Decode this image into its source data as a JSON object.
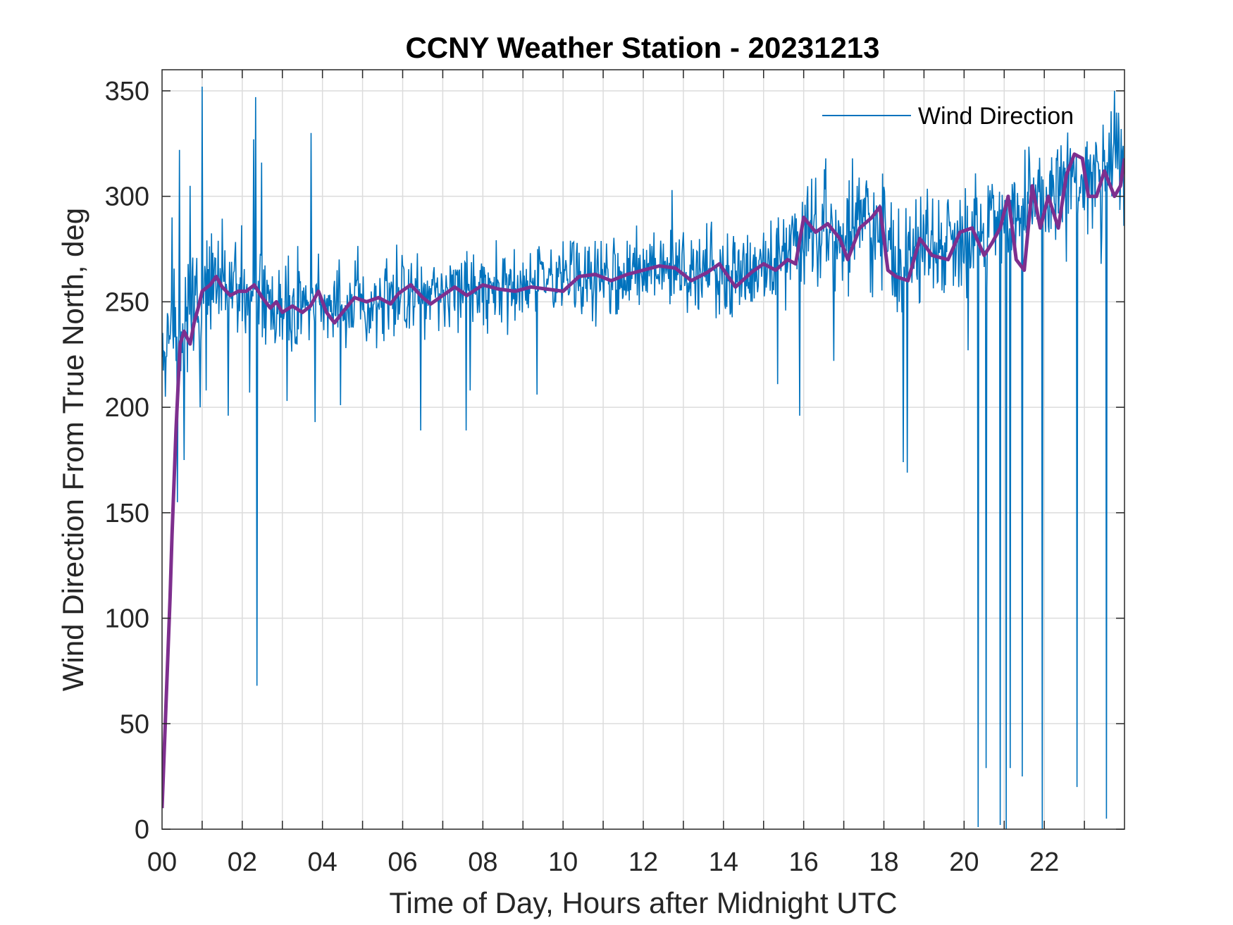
{
  "chart_data": {
    "type": "line",
    "title": "CCNY Weather Station - 20231213",
    "xlabel": "Time of Day, Hours after Midnight UTC",
    "ylabel": "Wind Direction From True North, deg",
    "xlim": [
      0,
      24
    ],
    "ylim": [
      0,
      360
    ],
    "x_ticks": [
      0,
      2,
      4,
      6,
      8,
      10,
      12,
      14,
      16,
      18,
      20,
      22
    ],
    "x_tick_labels": [
      "00",
      "02",
      "04",
      "06",
      "08",
      "10",
      "12",
      "14",
      "16",
      "18",
      "20",
      "22"
    ],
    "y_ticks": [
      0,
      50,
      100,
      150,
      200,
      250,
      300,
      350
    ],
    "y_tick_labels": [
      "0",
      "50",
      "100",
      "150",
      "200",
      "250",
      "300",
      "350"
    ],
    "grid": true,
    "legend": {
      "position": "top-right",
      "entries": [
        "Wind Direction"
      ]
    },
    "colors": {
      "raw": "#0072BD",
      "smooth": "#7E2F8E",
      "grid": "#dcdcdc",
      "axis": "#262626"
    },
    "series": [
      {
        "name": "Wind Direction",
        "samples_per_hour": 60,
        "base_curve": {
          "x": [
            0,
            0.3,
            0.6,
            1.0,
            1.5,
            2.0,
            2.5,
            3.0,
            3.5,
            4.0,
            4.5,
            5.0,
            5.5,
            6.0,
            6.5,
            7.0,
            7.5,
            8.0,
            9.0,
            10.0,
            11.0,
            12.0,
            13.0,
            14.0,
            15.0,
            15.5,
            16.0,
            16.5,
            17.0,
            17.5,
            18.0,
            18.5,
            19.0,
            19.5,
            20.0,
            20.5,
            21.0,
            21.5,
            22.0,
            22.5,
            23.0,
            23.5,
            24.0
          ],
          "y": [
            225,
            235,
            240,
            255,
            258,
            255,
            252,
            250,
            248,
            245,
            250,
            252,
            253,
            254,
            252,
            255,
            257,
            257,
            256,
            260,
            262,
            264,
            265,
            264,
            267,
            272,
            285,
            286,
            278,
            288,
            280,
            268,
            278,
            278,
            283,
            285,
            295,
            290,
            298,
            310,
            305,
            310,
            318
          ]
        },
        "noise_amplitude": {
          "x": [
            0,
            1,
            5,
            10,
            15,
            16,
            18,
            20,
            21,
            24
          ],
          "y": [
            22,
            26,
            17,
            17,
            20,
            22,
            24,
            24,
            24,
            22
          ]
        },
        "spikes": [
          {
            "t": 0.08,
            "v": 205
          },
          {
            "t": 0.25,
            "v": 290
          },
          {
            "t": 0.38,
            "v": 155
          },
          {
            "t": 0.43,
            "v": 322
          },
          {
            "t": 0.55,
            "v": 175
          },
          {
            "t": 0.7,
            "v": 305
          },
          {
            "t": 0.95,
            "v": 200
          },
          {
            "t": 1.0,
            "v": 352
          },
          {
            "t": 1.1,
            "v": 208
          },
          {
            "t": 1.65,
            "v": 196
          },
          {
            "t": 2.18,
            "v": 207
          },
          {
            "t": 2.28,
            "v": 327
          },
          {
            "t": 2.33,
            "v": 347
          },
          {
            "t": 2.37,
            "v": 68
          },
          {
            "t": 2.48,
            "v": 316
          },
          {
            "t": 3.12,
            "v": 203
          },
          {
            "t": 3.72,
            "v": 330
          },
          {
            "t": 3.82,
            "v": 193
          },
          {
            "t": 4.45,
            "v": 201
          },
          {
            "t": 5.35,
            "v": 228
          },
          {
            "t": 6.45,
            "v": 189
          },
          {
            "t": 7.58,
            "v": 189
          },
          {
            "t": 7.68,
            "v": 208
          },
          {
            "t": 9.35,
            "v": 206
          },
          {
            "t": 12.72,
            "v": 303
          },
          {
            "t": 15.35,
            "v": 211
          },
          {
            "t": 15.9,
            "v": 196
          },
          {
            "t": 16.55,
            "v": 318
          },
          {
            "t": 16.75,
            "v": 222
          },
          {
            "t": 17.22,
            "v": 318
          },
          {
            "t": 18.48,
            "v": 174
          },
          {
            "t": 18.58,
            "v": 169
          },
          {
            "t": 20.1,
            "v": 227
          },
          {
            "t": 20.35,
            "v": 1
          },
          {
            "t": 20.55,
            "v": 29
          },
          {
            "t": 20.9,
            "v": 2
          },
          {
            "t": 21.05,
            "v": 0
          },
          {
            "t": 21.15,
            "v": 29
          },
          {
            "t": 21.45,
            "v": 25
          },
          {
            "t": 21.95,
            "v": 0
          },
          {
            "t": 22.55,
            "v": 269
          },
          {
            "t": 22.82,
            "v": 20
          },
          {
            "t": 23.08,
            "v": 282
          },
          {
            "t": 23.42,
            "v": 268
          },
          {
            "t": 23.55,
            "v": 5
          },
          {
            "t": 23.75,
            "v": 350
          },
          {
            "t": 23.98,
            "v": 286
          }
        ]
      },
      {
        "name": "Smoothed (unlabeled)",
        "x": [
          0,
          0.1,
          0.2,
          0.25,
          0.35,
          0.45,
          0.55,
          0.7,
          0.8,
          0.9,
          1.0,
          1.2,
          1.35,
          1.5,
          1.7,
          1.9,
          2.1,
          2.3,
          2.5,
          2.7,
          2.85,
          3.0,
          3.25,
          3.5,
          3.7,
          3.9,
          4.1,
          4.3,
          4.5,
          4.8,
          5.1,
          5.4,
          5.7,
          5.9,
          6.2,
          6.5,
          6.7,
          7.0,
          7.3,
          7.6,
          8.0,
          8.4,
          8.8,
          9.2,
          9.6,
          10.0,
          10.4,
          10.8,
          11.2,
          11.6,
          12.0,
          12.4,
          12.8,
          13.2,
          13.6,
          13.9,
          14.3,
          14.7,
          15.0,
          15.3,
          15.6,
          15.8,
          16.0,
          16.3,
          16.6,
          16.9,
          17.1,
          17.4,
          17.7,
          17.9,
          18.1,
          18.3,
          18.6,
          18.9,
          19.2,
          19.6,
          19.9,
          20.2,
          20.5,
          20.7,
          20.9,
          21.1,
          21.3,
          21.5,
          21.7,
          21.9,
          22.1,
          22.35,
          22.55,
          22.75,
          22.95,
          23.1,
          23.3,
          23.5,
          23.75,
          23.9,
          24.0
        ],
        "y": [
          10,
          60,
          110,
          140,
          190,
          230,
          236,
          230,
          240,
          247,
          255,
          258,
          262,
          257,
          253,
          255,
          255,
          258,
          252,
          247,
          250,
          245,
          248,
          245,
          248,
          255,
          245,
          240,
          245,
          252,
          250,
          252,
          249,
          254,
          258,
          252,
          249,
          253,
          257,
          253,
          258,
          256,
          255,
          257,
          256,
          255,
          262,
          263,
          260,
          263,
          265,
          267,
          266,
          260,
          264,
          268,
          257,
          264,
          268,
          265,
          270,
          268,
          290,
          283,
          287,
          280,
          270,
          285,
          290,
          295,
          265,
          262,
          260,
          280,
          272,
          270,
          283,
          285,
          272,
          278,
          285,
          300,
          270,
          265,
          305,
          285,
          300,
          285,
          310,
          320,
          318,
          300,
          300,
          312,
          300,
          305,
          318
        ]
      }
    ]
  }
}
